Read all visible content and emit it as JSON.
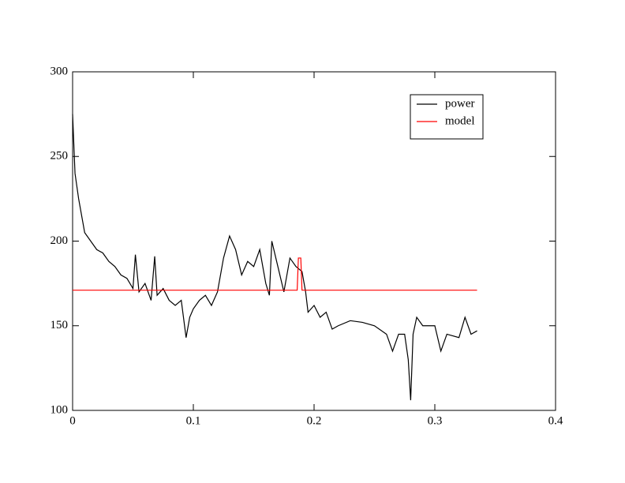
{
  "chart_data": {
    "type": "line",
    "x": [
      0,
      0.002,
      0.005,
      0.01,
      0.015,
      0.02,
      0.025,
      0.03,
      0.035,
      0.04,
      0.045,
      0.05,
      0.052,
      0.055,
      0.06,
      0.065,
      0.068,
      0.07,
      0.075,
      0.08,
      0.085,
      0.09,
      0.094,
      0.097,
      0.1,
      0.105,
      0.11,
      0.115,
      0.12,
      0.125,
      0.13,
      0.135,
      0.14,
      0.145,
      0.15,
      0.155,
      0.16,
      0.163,
      0.165,
      0.17,
      0.175,
      0.18,
      0.185,
      0.19,
      0.193,
      0.195,
      0.2,
      0.205,
      0.21,
      0.215,
      0.22,
      0.23,
      0.24,
      0.25,
      0.26,
      0.265,
      0.27,
      0.275,
      0.278,
      0.28,
      0.282,
      0.285,
      0.29,
      0.3,
      0.305,
      0.31,
      0.32,
      0.325,
      0.33,
      0.335
    ],
    "series": [
      {
        "name": "power",
        "color": "#000000",
        "values": [
          275,
          240,
          225,
          205,
          200,
          195,
          193,
          188,
          185,
          180,
          178,
          172,
          192,
          170,
          175,
          165,
          191,
          168,
          172,
          165,
          162,
          165,
          143,
          155,
          160,
          165,
          168,
          162,
          170,
          190,
          203,
          195,
          180,
          188,
          185,
          195,
          175,
          168,
          200,
          185,
          170,
          190,
          185,
          182,
          170,
          158,
          162,
          155,
          158,
          148,
          150,
          153,
          152,
          150,
          145,
          135,
          145,
          145,
          130,
          106,
          145,
          155,
          150,
          150,
          135,
          145,
          143,
          155,
          145,
          147
        ]
      },
      {
        "name": "model",
        "color": "#ff0000",
        "x": [
          0,
          0.186,
          0.187,
          0.189,
          0.19,
          0.335
        ],
        "values": [
          171,
          171,
          190,
          190,
          171,
          171
        ]
      }
    ],
    "xlim": [
      0,
      0.4
    ],
    "xticks": [
      0,
      0.1,
      0.2,
      0.3,
      0.4
    ],
    "ylim": [
      100,
      300
    ],
    "yticks": [
      100,
      150,
      200,
      250,
      300
    ],
    "legend": "upper right"
  }
}
